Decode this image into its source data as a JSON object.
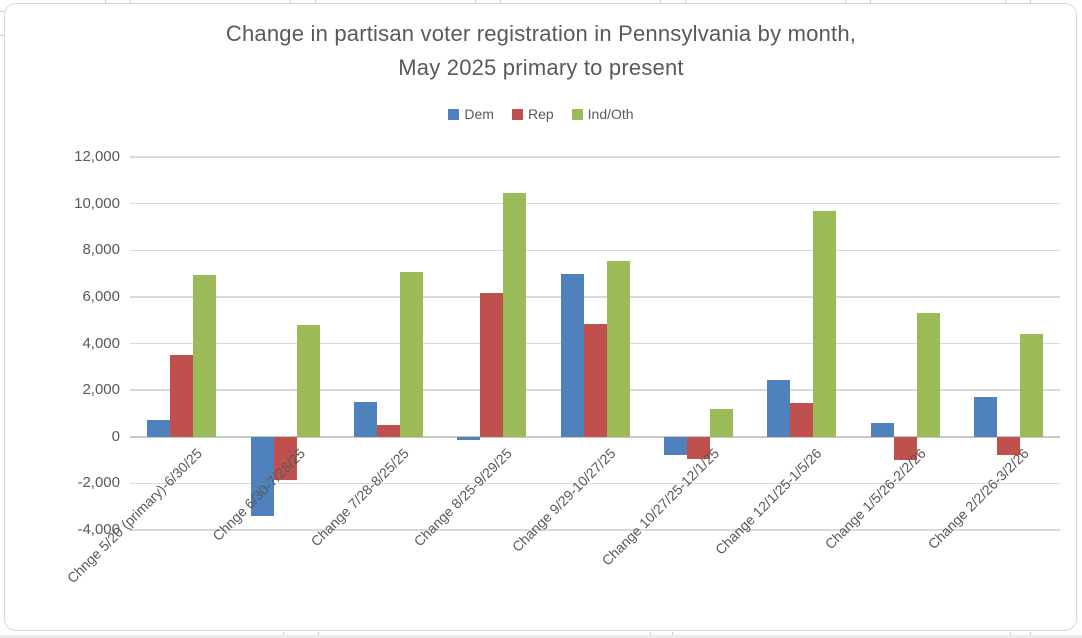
{
  "colors": {
    "dem": "#4F81BD",
    "rep": "#C0504D",
    "ind_oth": "#9BBB59",
    "grid": "#DADADA",
    "axis_text": "#595959",
    "title_text": "#595959",
    "frame_border": "#D9D9D9"
  },
  "chart_data": {
    "type": "bar",
    "title": "Change in partisan voter registration in Pennsylvania by month, May 2025 primary to present",
    "title_lines": [
      "Change in partisan voter registration in Pennsylvania by month,",
      "May 2025 primary to present"
    ],
    "legend_position": "top",
    "grid": true,
    "categories": [
      "Chnge 5/20 (primary)-6/30/25",
      "Chnge 6/30-7/28/25",
      "Change 7/28-8/25/25",
      "Change 8/25-9/29/25",
      "Change 9/29-10/27/25",
      "Change 10/27/25-12/1/25",
      "Change 12/1/25-1/5/26",
      "Change 1/5/26-2/2/26",
      "Change 2/2/26-3/2/26"
    ],
    "series": [
      {
        "name": "Dem",
        "color": "#4F81BD",
        "values": [
          700,
          -3400,
          1500,
          -120,
          7000,
          -800,
          2450,
          600,
          1700
        ]
      },
      {
        "name": "Rep",
        "color": "#C0504D",
        "values": [
          3500,
          -1850,
          520,
          6150,
          4850,
          -950,
          1450,
          -1000,
          -800
        ]
      },
      {
        "name": "Ind/Oth",
        "color": "#9BBB59",
        "values": [
          6950,
          4800,
          7050,
          10450,
          7550,
          1200,
          9700,
          5300,
          4400
        ]
      }
    ],
    "y_axis": {
      "min": -4000,
      "max": 12000,
      "step": 2000,
      "tick_labels": [
        "12,000",
        "10,000",
        "8,000",
        "6,000",
        "4,000",
        "2,000",
        "0",
        "-2,000",
        "-4,000"
      ]
    }
  }
}
